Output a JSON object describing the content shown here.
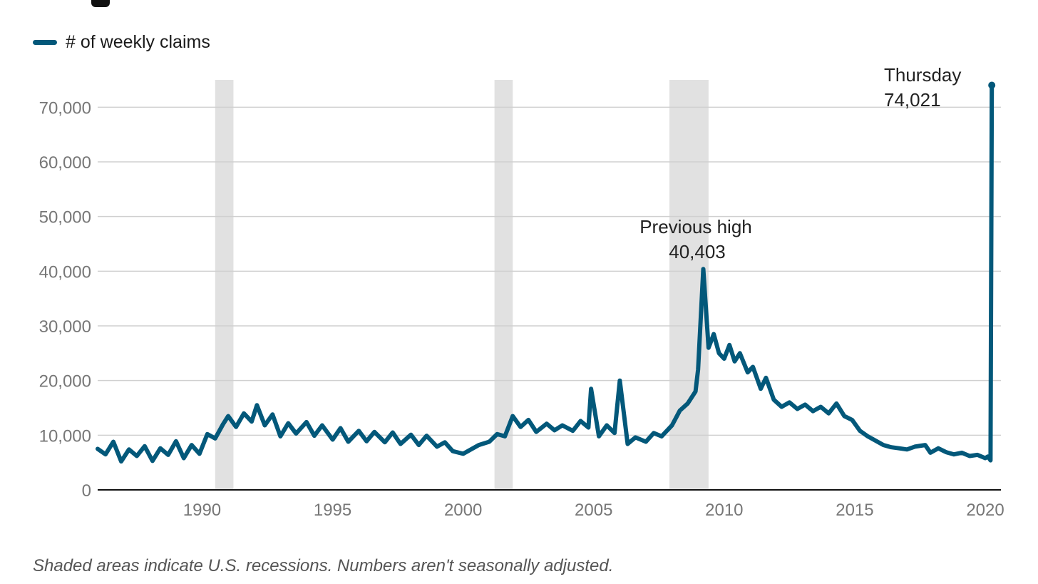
{
  "legend": {
    "label": "# of weekly claims",
    "color": "#03587a"
  },
  "footnote": "Shaded areas indicate U.S. recessions. Numbers aren't seasonally adjusted.",
  "colors": {
    "line": "#03587a",
    "recession": "#e1e1e1",
    "grid": "#d0d0d0",
    "axis": "#111111",
    "tick_text": "#777777",
    "annotation_text": "#222222"
  },
  "chart_data": {
    "type": "line",
    "title": "",
    "xlabel": "",
    "ylabel": "",
    "xlim": [
      1986.0,
      2020.6
    ],
    "ylim": [
      0,
      70000
    ],
    "grid": true,
    "legend_position": "top-left",
    "x_ticks": [
      1990,
      1995,
      2000,
      2005,
      2010,
      2015,
      2020
    ],
    "x_tick_labels": [
      "1990",
      "1995",
      "2000",
      "2005",
      "2010",
      "2015",
      "2020"
    ],
    "y_ticks": [
      0,
      10000,
      20000,
      30000,
      40000,
      50000,
      60000,
      70000
    ],
    "y_tick_labels": [
      "0",
      "10,000",
      "20,000",
      "30,000",
      "40,000",
      "50,000",
      "60,000",
      "70,000"
    ],
    "recessions": [
      {
        "start": 1990.5,
        "end": 1991.2
      },
      {
        "start": 2001.2,
        "end": 2001.9
      },
      {
        "start": 2007.9,
        "end": 2009.4
      }
    ],
    "series": [
      {
        "name": "# of weekly claims",
        "x": [
          1986.0,
          1986.3,
          1986.6,
          1986.9,
          1987.2,
          1987.5,
          1987.8,
          1988.1,
          1988.4,
          1988.7,
          1989.0,
          1989.3,
          1989.6,
          1989.9,
          1990.2,
          1990.5,
          1990.8,
          1991.0,
          1991.3,
          1991.6,
          1991.9,
          1992.1,
          1992.4,
          1992.7,
          1993.0,
          1993.3,
          1993.6,
          1994.0,
          1994.3,
          1994.6,
          1995.0,
          1995.3,
          1995.6,
          1996.0,
          1996.3,
          1996.6,
          1997.0,
          1997.3,
          1997.6,
          1998.0,
          1998.3,
          1998.6,
          1999.0,
          1999.3,
          1999.6,
          2000.0,
          2000.3,
          2000.6,
          2001.0,
          2001.3,
          2001.6,
          2001.9,
          2002.2,
          2002.5,
          2002.8,
          2003.2,
          2003.5,
          2003.8,
          2004.2,
          2004.5,
          2004.8,
          2004.9,
          2005.2,
          2005.5,
          2005.8,
          2006.0,
          2006.3,
          2006.6,
          2007.0,
          2007.3,
          2007.6,
          2008.0,
          2008.3,
          2008.6,
          2008.9,
          2009.0,
          2009.2,
          2009.4,
          2009.6,
          2009.8,
          2010.0,
          2010.2,
          2010.4,
          2010.6,
          2010.9,
          2011.1,
          2011.4,
          2011.6,
          2011.9,
          2012.2,
          2012.5,
          2012.8,
          2013.1,
          2013.4,
          2013.7,
          2014.0,
          2014.3,
          2014.6,
          2014.9,
          2015.2,
          2015.5,
          2015.8,
          2016.1,
          2016.4,
          2016.7,
          2017.0,
          2017.3,
          2017.7,
          2017.9,
          2018.2,
          2018.5,
          2018.8,
          2019.1,
          2019.4,
          2019.7,
          2020.0,
          2020.1,
          2020.2,
          2020.25
        ],
        "y": [
          7500,
          6500,
          8800,
          5200,
          7400,
          6200,
          8000,
          5300,
          7600,
          6400,
          8900,
          5800,
          8200,
          6600,
          10200,
          9400,
          12000,
          13500,
          11500,
          14000,
          12500,
          15500,
          11800,
          13800,
          9800,
          12200,
          10300,
          12400,
          9900,
          11800,
          9200,
          11300,
          8800,
          10800,
          8900,
          10600,
          8700,
          10500,
          8400,
          10100,
          8200,
          9900,
          7900,
          8700,
          7100,
          6600,
          7400,
          8200,
          8800,
          10200,
          9800,
          13500,
          11500,
          12800,
          10600,
          12100,
          10900,
          11800,
          10800,
          12600,
          11400,
          18500,
          9800,
          11800,
          10400,
          20000,
          8400,
          9600,
          8800,
          10400,
          9800,
          11800,
          14500,
          15800,
          18000,
          22000,
          40403,
          26000,
          28500,
          25000,
          24000,
          26500,
          23500,
          25000,
          21500,
          22500,
          18500,
          20500,
          16500,
          15200,
          16000,
          14800,
          15600,
          14400,
          15200,
          14000,
          15800,
          13500,
          12800,
          10800,
          9800,
          9000,
          8200,
          7800,
          7600,
          7400,
          7900,
          8200,
          6800,
          7600,
          6900,
          6500,
          6800,
          6200,
          6400,
          5800,
          6100,
          5400,
          74021
        ]
      }
    ],
    "annotations": [
      {
        "label": "Previous high",
        "value": "40,403",
        "x": 2009.0,
        "y": 40403
      },
      {
        "label": "Thursday",
        "value": "74,021",
        "x": 2020.25,
        "y": 74021
      }
    ]
  }
}
